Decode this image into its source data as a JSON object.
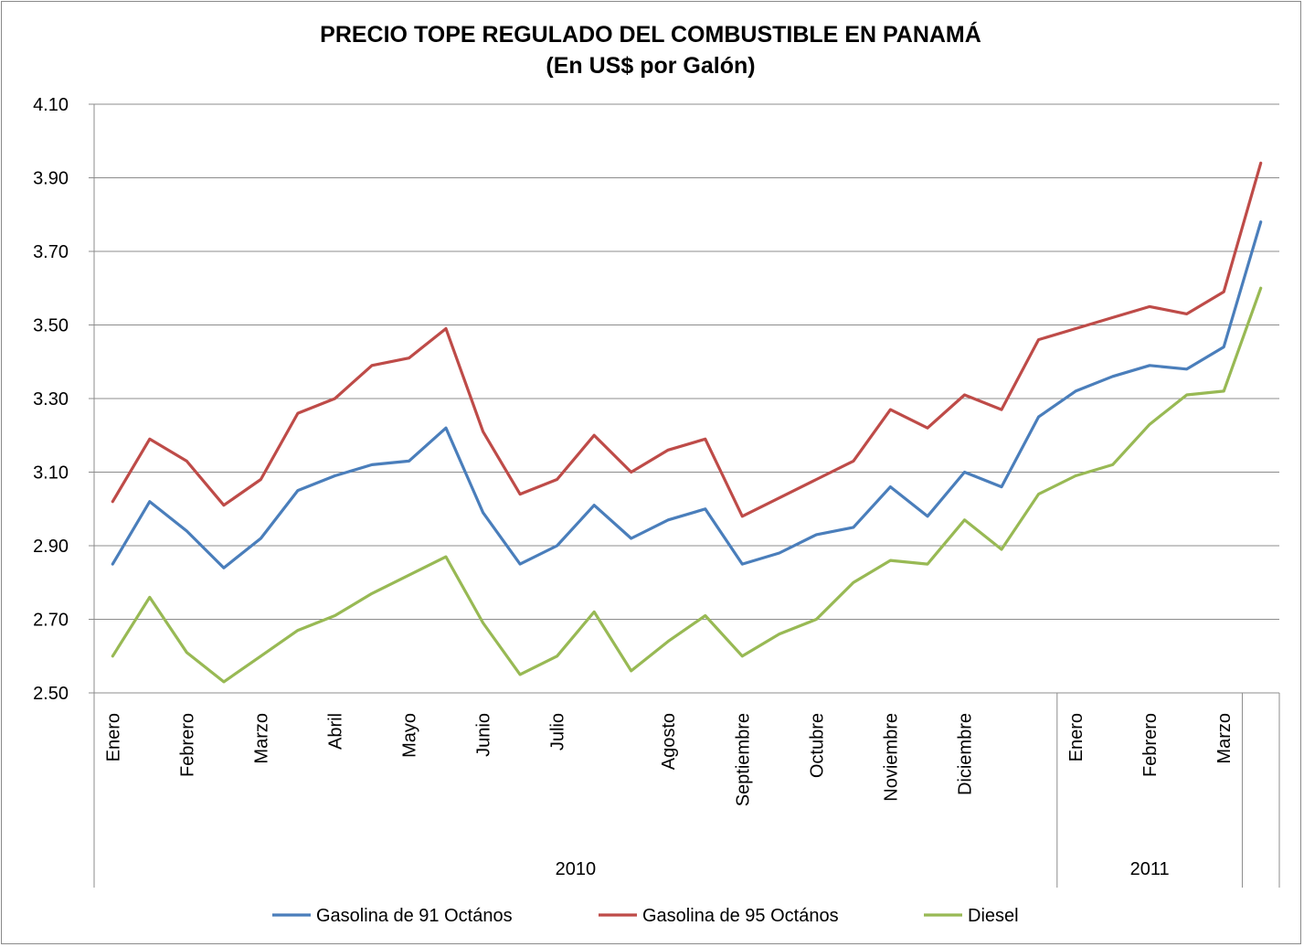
{
  "chart_data": {
    "type": "line",
    "title": "PRECIO TOPE  REGULADO DEL COMBUSTIBLE EN PANAMÁ",
    "subtitle": "(En US$ por Galón)",
    "xlabel": "",
    "ylabel": "",
    "ylim": [
      2.5,
      4.1
    ],
    "yticks": [
      "2.50",
      "2.70",
      "2.90",
      "3.10",
      "3.30",
      "3.50",
      "3.70",
      "3.90",
      "4.10"
    ],
    "grid": true,
    "legend_position": "bottom",
    "month_labels": [
      {
        "label": "Enero",
        "index": 0
      },
      {
        "label": "Febrero",
        "index": 2
      },
      {
        "label": "Marzo",
        "index": 4
      },
      {
        "label": "Abril",
        "index": 6
      },
      {
        "label": "Mayo",
        "index": 8
      },
      {
        "label": "Junio",
        "index": 10
      },
      {
        "label": "Julio",
        "index": 12
      },
      {
        "label": "Agosto",
        "index": 15
      },
      {
        "label": "Septiembre",
        "index": 17
      },
      {
        "label": "Octubre",
        "index": 19
      },
      {
        "label": "Noviembre",
        "index": 21
      },
      {
        "label": "Diciembre",
        "index": 23
      },
      {
        "label": "Enero",
        "index": 26
      },
      {
        "label": "Febrero",
        "index": 28
      },
      {
        "label": "Marzo",
        "index": 30
      }
    ],
    "year_groups": [
      {
        "label": "2010",
        "start": 0,
        "end": 25
      },
      {
        "label": "2011",
        "start": 26,
        "end": 30
      }
    ],
    "point_count": 32,
    "series": [
      {
        "name": "Gasolina de 91 Octános",
        "color": "#4a7ebb",
        "values": [
          2.85,
          3.02,
          2.94,
          2.84,
          2.92,
          3.05,
          3.09,
          3.12,
          3.13,
          3.22,
          2.99,
          2.85,
          2.9,
          3.01,
          2.92,
          2.97,
          3.0,
          2.85,
          2.88,
          2.93,
          2.95,
          3.06,
          2.98,
          3.1,
          3.06,
          3.25,
          3.32,
          3.36,
          3.39,
          3.38,
          3.44,
          3.78
        ]
      },
      {
        "name": "Gasolina de 95 Octános",
        "color": "#be4b48",
        "values": [
          3.02,
          3.19,
          3.13,
          3.01,
          3.08,
          3.26,
          3.3,
          3.39,
          3.41,
          3.49,
          3.21,
          3.04,
          3.08,
          3.2,
          3.1,
          3.16,
          3.19,
          2.98,
          3.03,
          3.08,
          3.13,
          3.27,
          3.22,
          3.31,
          3.27,
          3.46,
          3.49,
          3.52,
          3.55,
          3.53,
          3.59,
          3.94
        ]
      },
      {
        "name": "Diesel",
        "color": "#98b954",
        "values": [
          2.6,
          2.76,
          2.61,
          2.53,
          2.6,
          2.67,
          2.71,
          2.77,
          2.82,
          2.87,
          2.69,
          2.55,
          2.6,
          2.72,
          2.56,
          2.64,
          2.71,
          2.6,
          2.66,
          2.7,
          2.8,
          2.86,
          2.85,
          2.97,
          2.89,
          3.04,
          3.09,
          3.12,
          3.23,
          3.31,
          3.32,
          3.6
        ]
      }
    ]
  }
}
